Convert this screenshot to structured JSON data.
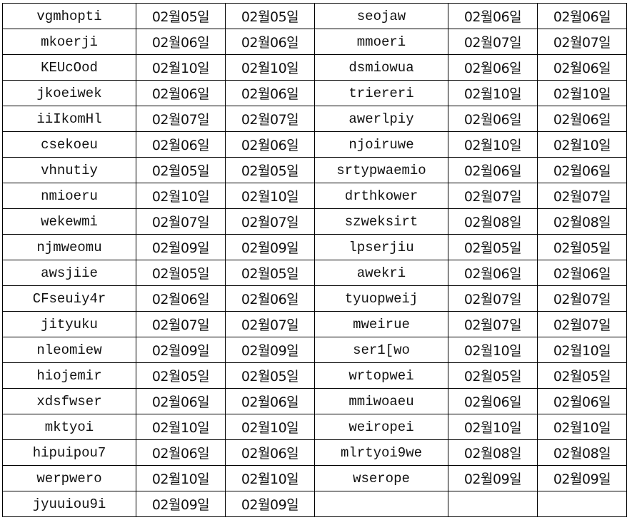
{
  "rows": [
    [
      "vgmhopti",
      "02월05일",
      "02월05일",
      "seojaw",
      "02월06일",
      "02월06일"
    ],
    [
      "mkoerji",
      "02월06일",
      "02월06일",
      "mmoeri",
      "02월07일",
      "02월07일"
    ],
    [
      "KEUcOod",
      "02월10일",
      "02월10일",
      "dsmiowua",
      "02월06일",
      "02월06일"
    ],
    [
      "jkoeiwek",
      "02월06일",
      "02월06일",
      "triereri",
      "02월10일",
      "02월10일"
    ],
    [
      "iiIkomHl",
      "02월07일",
      "02월07일",
      "awerlpiy",
      "02월06일",
      "02월06일"
    ],
    [
      "csekoeu",
      "02월06일",
      "02월06일",
      "njoiruwe",
      "02월10일",
      "02월10일"
    ],
    [
      "vhnutiy",
      "02월05일",
      "02월05일",
      "srtypwaemio",
      "02월06일",
      "02월06일"
    ],
    [
      "nmioeru",
      "02월10일",
      "02월10일",
      "drthkower",
      "02월07일",
      "02월07일"
    ],
    [
      "wekewmi",
      "02월07일",
      "02월07일",
      "szweksirt",
      "02월08일",
      "02월08일"
    ],
    [
      "njmweomu",
      "02월09일",
      "02월09일",
      "lpserjiu",
      "02월05일",
      "02월05일"
    ],
    [
      "awsjiie",
      "02월05일",
      "02월05일",
      "awekri",
      "02월06일",
      "02월06일"
    ],
    [
      "CFseuiy4r",
      "02월06일",
      "02월06일",
      "tyuopweij",
      "02월07일",
      "02월07일"
    ],
    [
      "jityuku",
      "02월07일",
      "02월07일",
      "mweirue",
      "02월07일",
      "02월07일"
    ],
    [
      "nleomiew",
      "02월09일",
      "02월09일",
      "ser1[wo",
      "02월10일",
      "02월10일"
    ],
    [
      "hiojemir",
      "02월05일",
      "02월05일",
      "wrtopwei",
      "02월05일",
      "02월05일"
    ],
    [
      "xdsfwser",
      "02월06일",
      "02월06일",
      "mmiwoaeu",
      "02월06일",
      "02월06일"
    ],
    [
      "mktyoi",
      "02월10일",
      "02월10일",
      "weiropei",
      "02월10일",
      "02월10일"
    ],
    [
      "hipuipou7",
      "02월06일",
      "02월06일",
      "mlrtyoi9we",
      "02월08일",
      "02월08일"
    ],
    [
      "werpwero",
      "02월10일",
      "02월10일",
      "wserope",
      "02월09일",
      "02월09일"
    ],
    [
      "jyuuiou9i",
      "02월09일",
      "02월09일",
      "",
      "",
      ""
    ]
  ]
}
